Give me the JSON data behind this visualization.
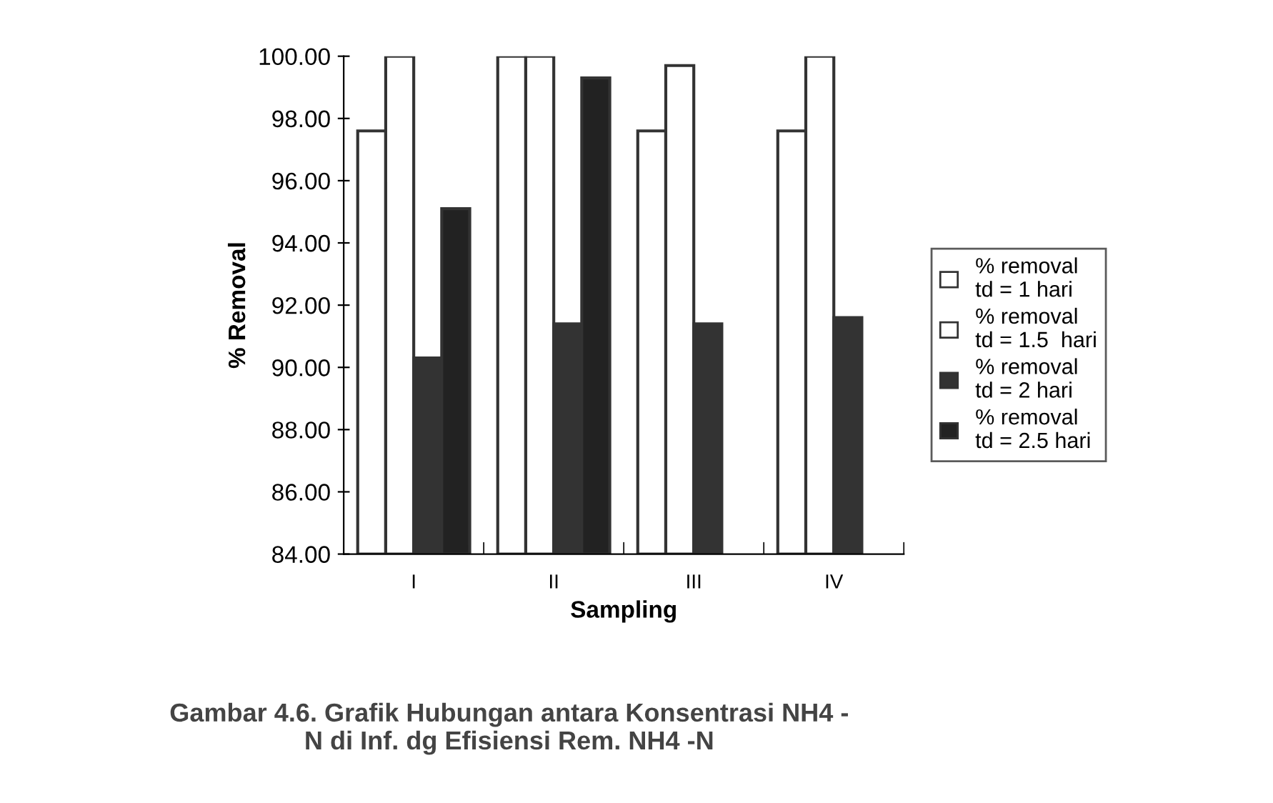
{
  "chart_data": {
    "type": "bar",
    "title": "Gambar 4.6. Grafik Hubungan antara Konsentrasi NH4 -\nN di Inf. dg Efisiensi Rem. NH4 -N",
    "xlabel": "Sampling",
    "ylabel": "% Removal",
    "categories": [
      "I",
      "II",
      "III",
      "IV"
    ],
    "series": [
      {
        "name": "% removal\ntd = 1 hari",
        "color": "#ffffff",
        "values": [
          97.6,
          100.0,
          97.6,
          97.6
        ]
      },
      {
        "name": "% removal\ntd = 1.5  hari",
        "color": "#ffffff",
        "values": [
          100.0,
          100.0,
          99.7,
          100.0
        ]
      },
      {
        "name": "% removal\ntd = 2 hari",
        "color": "#333333",
        "values": [
          90.3,
          91.4,
          91.4,
          91.6
        ]
      },
      {
        "name": "% removal\ntd = 2.5 hari",
        "color": "#222222",
        "values": [
          95.1,
          99.3,
          null,
          null
        ]
      }
    ],
    "ylim": [
      84,
      100
    ],
    "yticks": [
      {
        "value": 84,
        "label": "84.00"
      },
      {
        "value": 86,
        "label": "86.00"
      },
      {
        "value": 88,
        "label": "88.00"
      },
      {
        "value": 90,
        "label": "90.00"
      },
      {
        "value": 92,
        "label": "92.00"
      },
      {
        "value": 94,
        "label": "94.00"
      },
      {
        "value": 96,
        "label": "96.00"
      },
      {
        "value": 98,
        "label": "98.00"
      },
      {
        "value": 100,
        "label": "100.00"
      }
    ],
    "grid": false,
    "legend": "right"
  }
}
